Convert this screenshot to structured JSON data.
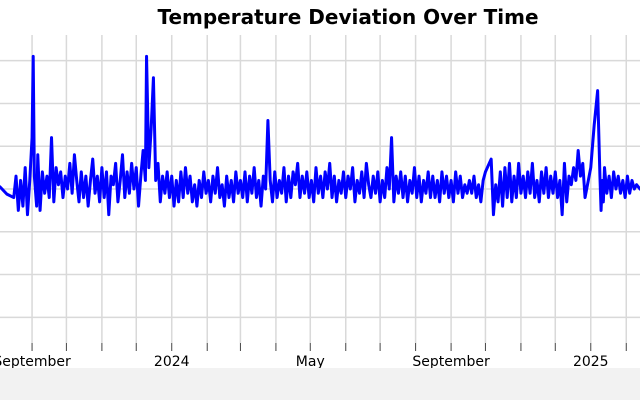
{
  "chart_data": {
    "type": "line",
    "title": "Temperature Deviation Over Time",
    "xlabel": "",
    "ylabel": "",
    "x_axis": {
      "type": "date",
      "range": [
        "2023-08-04",
        "2025-02-13"
      ],
      "tick_labels": [
        {
          "date": "2023-09-01",
          "label": "September"
        },
        {
          "date": "2024-01-01",
          "label": "2024"
        },
        {
          "date": "2024-05-01",
          "label": "May"
        },
        {
          "date": "2024-09-01",
          "label": "September"
        },
        {
          "date": "2025-01-01",
          "label": "2025"
        }
      ]
    },
    "ylim": [
      -3.6,
      3.6
    ],
    "grid": true,
    "series": [
      {
        "color": "#0000ff",
        "points": [
          [
            "2023-08-04",
            0.05
          ],
          [
            "2023-08-10",
            -0.12
          ],
          [
            "2023-08-16",
            -0.2
          ],
          [
            "2023-08-18",
            0.3
          ],
          [
            "2023-08-20",
            -0.5
          ],
          [
            "2023-08-22",
            0.2
          ],
          [
            "2023-08-24",
            -0.4
          ],
          [
            "2023-08-26",
            0.5
          ],
          [
            "2023-08-28",
            -0.6
          ],
          [
            "2023-08-30",
            0.2
          ],
          [
            "2023-09-01",
            1.2
          ],
          [
            "2023-09-02",
            3.1
          ],
          [
            "2023-09-03",
            0.3
          ],
          [
            "2023-09-05",
            -0.4
          ],
          [
            "2023-09-06",
            0.8
          ],
          [
            "2023-09-08",
            -0.5
          ],
          [
            "2023-09-10",
            0.4
          ],
          [
            "2023-09-12",
            -0.1
          ],
          [
            "2023-09-14",
            0.3
          ],
          [
            "2023-09-16",
            -0.2
          ],
          [
            "2023-09-18",
            1.2
          ],
          [
            "2023-09-20",
            -0.3
          ],
          [
            "2023-09-22",
            0.5
          ],
          [
            "2023-09-24",
            0.1
          ],
          [
            "2023-09-26",
            0.4
          ],
          [
            "2023-09-28",
            -0.2
          ],
          [
            "2023-09-30",
            0.3
          ],
          [
            "2023-10-02",
            0.0
          ],
          [
            "2023-10-04",
            0.6
          ],
          [
            "2023-10-06",
            -0.1
          ],
          [
            "2023-10-08",
            0.8
          ],
          [
            "2023-10-10",
            0.2
          ],
          [
            "2023-10-12",
            -0.3
          ],
          [
            "2023-10-14",
            0.4
          ],
          [
            "2023-10-16",
            -0.2
          ],
          [
            "2023-10-18",
            0.3
          ],
          [
            "2023-10-20",
            -0.4
          ],
          [
            "2023-10-22",
            0.2
          ],
          [
            "2023-10-24",
            0.7
          ],
          [
            "2023-10-26",
            -0.1
          ],
          [
            "2023-10-28",
            0.3
          ],
          [
            "2023-10-30",
            -0.3
          ],
          [
            "2023-11-01",
            0.5
          ],
          [
            "2023-11-03",
            -0.2
          ],
          [
            "2023-11-05",
            0.4
          ],
          [
            "2023-11-07",
            -0.6
          ],
          [
            "2023-11-09",
            0.3
          ],
          [
            "2023-11-11",
            0.1
          ],
          [
            "2023-11-13",
            0.6
          ],
          [
            "2023-11-15",
            -0.3
          ],
          [
            "2023-11-17",
            0.2
          ],
          [
            "2023-11-19",
            0.8
          ],
          [
            "2023-11-21",
            -0.2
          ],
          [
            "2023-11-23",
            0.4
          ],
          [
            "2023-11-25",
            -0.1
          ],
          [
            "2023-11-27",
            0.6
          ],
          [
            "2023-11-29",
            0.0
          ],
          [
            "2023-12-01",
            0.5
          ],
          [
            "2023-12-03",
            -0.4
          ],
          [
            "2023-12-05",
            0.3
          ],
          [
            "2023-12-07",
            0.9
          ],
          [
            "2023-12-09",
            0.2
          ],
          [
            "2023-12-10",
            3.1
          ],
          [
            "2023-12-12",
            0.5
          ],
          [
            "2023-12-14",
            1.4
          ],
          [
            "2023-12-16",
            2.6
          ],
          [
            "2023-12-18",
            0.2
          ],
          [
            "2023-12-20",
            0.6
          ],
          [
            "2023-12-22",
            -0.3
          ],
          [
            "2023-12-24",
            0.3
          ],
          [
            "2023-12-26",
            -0.1
          ],
          [
            "2023-12-28",
            0.4
          ],
          [
            "2023-12-30",
            -0.2
          ],
          [
            "2024-01-01",
            0.3
          ],
          [
            "2024-01-03",
            -0.4
          ],
          [
            "2024-01-05",
            0.2
          ],
          [
            "2024-01-07",
            -0.3
          ],
          [
            "2024-01-09",
            0.4
          ],
          [
            "2024-01-11",
            -0.2
          ],
          [
            "2024-01-13",
            0.5
          ],
          [
            "2024-01-15",
            -0.1
          ],
          [
            "2024-01-17",
            0.3
          ],
          [
            "2024-01-19",
            -0.3
          ],
          [
            "2024-01-21",
            0.1
          ],
          [
            "2024-01-23",
            -0.4
          ],
          [
            "2024-01-25",
            0.2
          ],
          [
            "2024-01-27",
            -0.2
          ],
          [
            "2024-01-29",
            0.4
          ],
          [
            "2024-01-31",
            -0.1
          ],
          [
            "2024-02-02",
            0.2
          ],
          [
            "2024-02-04",
            -0.3
          ],
          [
            "2024-02-06",
            0.3
          ],
          [
            "2024-02-08",
            -0.1
          ],
          [
            "2024-02-10",
            0.5
          ],
          [
            "2024-02-12",
            -0.2
          ],
          [
            "2024-02-14",
            0.1
          ],
          [
            "2024-02-16",
            -0.4
          ],
          [
            "2024-02-18",
            0.3
          ],
          [
            "2024-02-20",
            -0.2
          ],
          [
            "2024-02-22",
            0.2
          ],
          [
            "2024-02-24",
            -0.3
          ],
          [
            "2024-02-26",
            0.4
          ],
          [
            "2024-02-28",
            -0.1
          ],
          [
            "2024-03-01",
            0.2
          ],
          [
            "2024-03-03",
            -0.2
          ],
          [
            "2024-03-05",
            0.4
          ],
          [
            "2024-03-07",
            -0.3
          ],
          [
            "2024-03-09",
            0.3
          ],
          [
            "2024-03-11",
            -0.1
          ],
          [
            "2024-03-13",
            0.5
          ],
          [
            "2024-03-15",
            -0.2
          ],
          [
            "2024-03-17",
            0.2
          ],
          [
            "2024-03-19",
            -0.4
          ],
          [
            "2024-03-21",
            0.3
          ],
          [
            "2024-03-23",
            0.0
          ],
          [
            "2024-03-25",
            1.6
          ],
          [
            "2024-03-27",
            0.2
          ],
          [
            "2024-03-29",
            -0.3
          ],
          [
            "2024-03-31",
            0.4
          ],
          [
            "2024-04-02",
            -0.2
          ],
          [
            "2024-04-04",
            0.2
          ],
          [
            "2024-04-06",
            -0.1
          ],
          [
            "2024-04-08",
            0.5
          ],
          [
            "2024-04-10",
            -0.3
          ],
          [
            "2024-04-12",
            0.3
          ],
          [
            "2024-04-14",
            -0.2
          ],
          [
            "2024-04-16",
            0.4
          ],
          [
            "2024-04-18",
            0.1
          ],
          [
            "2024-04-20",
            0.6
          ],
          [
            "2024-04-22",
            -0.2
          ],
          [
            "2024-04-24",
            0.3
          ],
          [
            "2024-04-26",
            -0.1
          ],
          [
            "2024-04-28",
            0.4
          ],
          [
            "2024-04-30",
            -0.2
          ],
          [
            "2024-05-02",
            0.2
          ],
          [
            "2024-05-04",
            -0.3
          ],
          [
            "2024-05-06",
            0.5
          ],
          [
            "2024-05-08",
            -0.1
          ],
          [
            "2024-05-10",
            0.3
          ],
          [
            "2024-05-12",
            -0.2
          ],
          [
            "2024-05-14",
            0.4
          ],
          [
            "2024-05-16",
            0.0
          ],
          [
            "2024-05-18",
            0.6
          ],
          [
            "2024-05-20",
            -0.2
          ],
          [
            "2024-05-22",
            0.3
          ],
          [
            "2024-05-24",
            -0.3
          ],
          [
            "2024-05-26",
            0.2
          ],
          [
            "2024-05-28",
            -0.1
          ],
          [
            "2024-05-30",
            0.4
          ],
          [
            "2024-06-01",
            -0.2
          ],
          [
            "2024-06-03",
            0.3
          ],
          [
            "2024-06-05",
            0.0
          ],
          [
            "2024-06-07",
            0.5
          ],
          [
            "2024-06-09",
            -0.3
          ],
          [
            "2024-06-11",
            0.2
          ],
          [
            "2024-06-13",
            -0.1
          ],
          [
            "2024-06-15",
            0.4
          ],
          [
            "2024-06-17",
            -0.2
          ],
          [
            "2024-06-19",
            0.6
          ],
          [
            "2024-06-21",
            0.1
          ],
          [
            "2024-06-23",
            -0.2
          ],
          [
            "2024-06-25",
            0.3
          ],
          [
            "2024-06-27",
            -0.1
          ],
          [
            "2024-06-29",
            0.4
          ],
          [
            "2024-07-01",
            -0.3
          ],
          [
            "2024-07-03",
            0.2
          ],
          [
            "2024-07-05",
            -0.2
          ],
          [
            "2024-07-07",
            0.5
          ],
          [
            "2024-07-09",
            0.0
          ],
          [
            "2024-07-11",
            1.2
          ],
          [
            "2024-07-13",
            -0.3
          ],
          [
            "2024-07-15",
            0.3
          ],
          [
            "2024-07-17",
            -0.1
          ],
          [
            "2024-07-19",
            0.4
          ],
          [
            "2024-07-21",
            -0.2
          ],
          [
            "2024-07-23",
            0.3
          ],
          [
            "2024-07-25",
            -0.3
          ],
          [
            "2024-07-27",
            0.2
          ],
          [
            "2024-07-29",
            -0.1
          ],
          [
            "2024-07-31",
            0.5
          ],
          [
            "2024-08-02",
            -0.2
          ],
          [
            "2024-08-04",
            0.3
          ],
          [
            "2024-08-06",
            -0.3
          ],
          [
            "2024-08-08",
            0.2
          ],
          [
            "2024-08-10",
            -0.1
          ],
          [
            "2024-08-12",
            0.4
          ],
          [
            "2024-08-14",
            -0.2
          ],
          [
            "2024-08-16",
            0.3
          ],
          [
            "2024-08-18",
            -0.2
          ],
          [
            "2024-08-20",
            0.2
          ],
          [
            "2024-08-22",
            -0.3
          ],
          [
            "2024-08-24",
            0.4
          ],
          [
            "2024-08-26",
            -0.1
          ],
          [
            "2024-08-28",
            0.3
          ],
          [
            "2024-08-30",
            -0.2
          ],
          [
            "2024-09-01",
            0.2
          ],
          [
            "2024-09-03",
            -0.3
          ],
          [
            "2024-09-05",
            0.4
          ],
          [
            "2024-09-07",
            -0.1
          ],
          [
            "2024-09-09",
            0.3
          ],
          [
            "2024-09-11",
            -0.2
          ],
          [
            "2024-09-13",
            0.1
          ],
          [
            "2024-09-15",
            -0.1
          ],
          [
            "2024-09-17",
            0.2
          ],
          [
            "2024-09-19",
            -0.1
          ],
          [
            "2024-09-21",
            0.3
          ],
          [
            "2024-09-23",
            -0.2
          ],
          [
            "2024-09-25",
            0.1
          ],
          [
            "2024-09-27",
            -0.3
          ],
          [
            "2024-09-29",
            0.2
          ],
          [
            "2024-10-01",
            0.4
          ],
          [
            "2024-10-06",
            0.7
          ],
          [
            "2024-10-08",
            -0.6
          ],
          [
            "2024-10-10",
            0.1
          ],
          [
            "2024-10-12",
            -0.3
          ],
          [
            "2024-10-14",
            0.4
          ],
          [
            "2024-10-16",
            -0.4
          ],
          [
            "2024-10-18",
            0.5
          ],
          [
            "2024-10-20",
            -0.2
          ],
          [
            "2024-10-22",
            0.6
          ],
          [
            "2024-10-24",
            -0.3
          ],
          [
            "2024-10-26",
            0.3
          ],
          [
            "2024-10-28",
            -0.2
          ],
          [
            "2024-10-30",
            0.6
          ],
          [
            "2024-11-01",
            -0.1
          ],
          [
            "2024-11-03",
            0.3
          ],
          [
            "2024-11-05",
            -0.2
          ],
          [
            "2024-11-07",
            0.4
          ],
          [
            "2024-11-09",
            -0.1
          ],
          [
            "2024-11-11",
            0.6
          ],
          [
            "2024-11-13",
            -0.2
          ],
          [
            "2024-11-15",
            0.2
          ],
          [
            "2024-11-17",
            -0.3
          ],
          [
            "2024-11-19",
            0.4
          ],
          [
            "2024-11-21",
            -0.1
          ],
          [
            "2024-11-23",
            0.5
          ],
          [
            "2024-11-25",
            -0.2
          ],
          [
            "2024-11-27",
            0.3
          ],
          [
            "2024-11-29",
            -0.1
          ],
          [
            "2024-12-01",
            0.4
          ],
          [
            "2024-12-03",
            -0.2
          ],
          [
            "2024-12-05",
            0.2
          ],
          [
            "2024-12-07",
            -0.6
          ],
          [
            "2024-12-09",
            0.6
          ],
          [
            "2024-12-11",
            -0.3
          ],
          [
            "2024-12-13",
            0.3
          ],
          [
            "2024-12-15",
            0.1
          ],
          [
            "2024-12-17",
            0.5
          ],
          [
            "2024-12-19",
            0.2
          ],
          [
            "2024-12-21",
            0.9
          ],
          [
            "2024-12-23",
            0.3
          ],
          [
            "2024-12-25",
            0.6
          ],
          [
            "2024-12-27",
            -0.2
          ],
          [
            "2025-01-01",
            0.5
          ],
          [
            "2025-01-04",
            1.5
          ],
          [
            "2025-01-07",
            2.3
          ],
          [
            "2025-01-09",
            0.3
          ],
          [
            "2025-01-10",
            -0.5
          ],
          [
            "2025-01-11",
            0.2
          ],
          [
            "2025-01-12",
            -0.3
          ],
          [
            "2025-01-13",
            0.5
          ],
          [
            "2025-01-15",
            -0.1
          ],
          [
            "2025-01-17",
            0.3
          ],
          [
            "2025-01-19",
            -0.2
          ],
          [
            "2025-01-21",
            0.4
          ],
          [
            "2025-01-23",
            0.0
          ],
          [
            "2025-01-25",
            0.3
          ],
          [
            "2025-01-27",
            -0.1
          ],
          [
            "2025-01-29",
            0.2
          ],
          [
            "2025-01-31",
            -0.2
          ],
          [
            "2025-02-02",
            0.3
          ],
          [
            "2025-02-04",
            -0.1
          ],
          [
            "2025-02-06",
            0.2
          ],
          [
            "2025-02-08",
            0.0
          ],
          [
            "2025-02-10",
            0.1
          ],
          [
            "2025-02-13",
            0.0
          ]
        ]
      }
    ]
  }
}
